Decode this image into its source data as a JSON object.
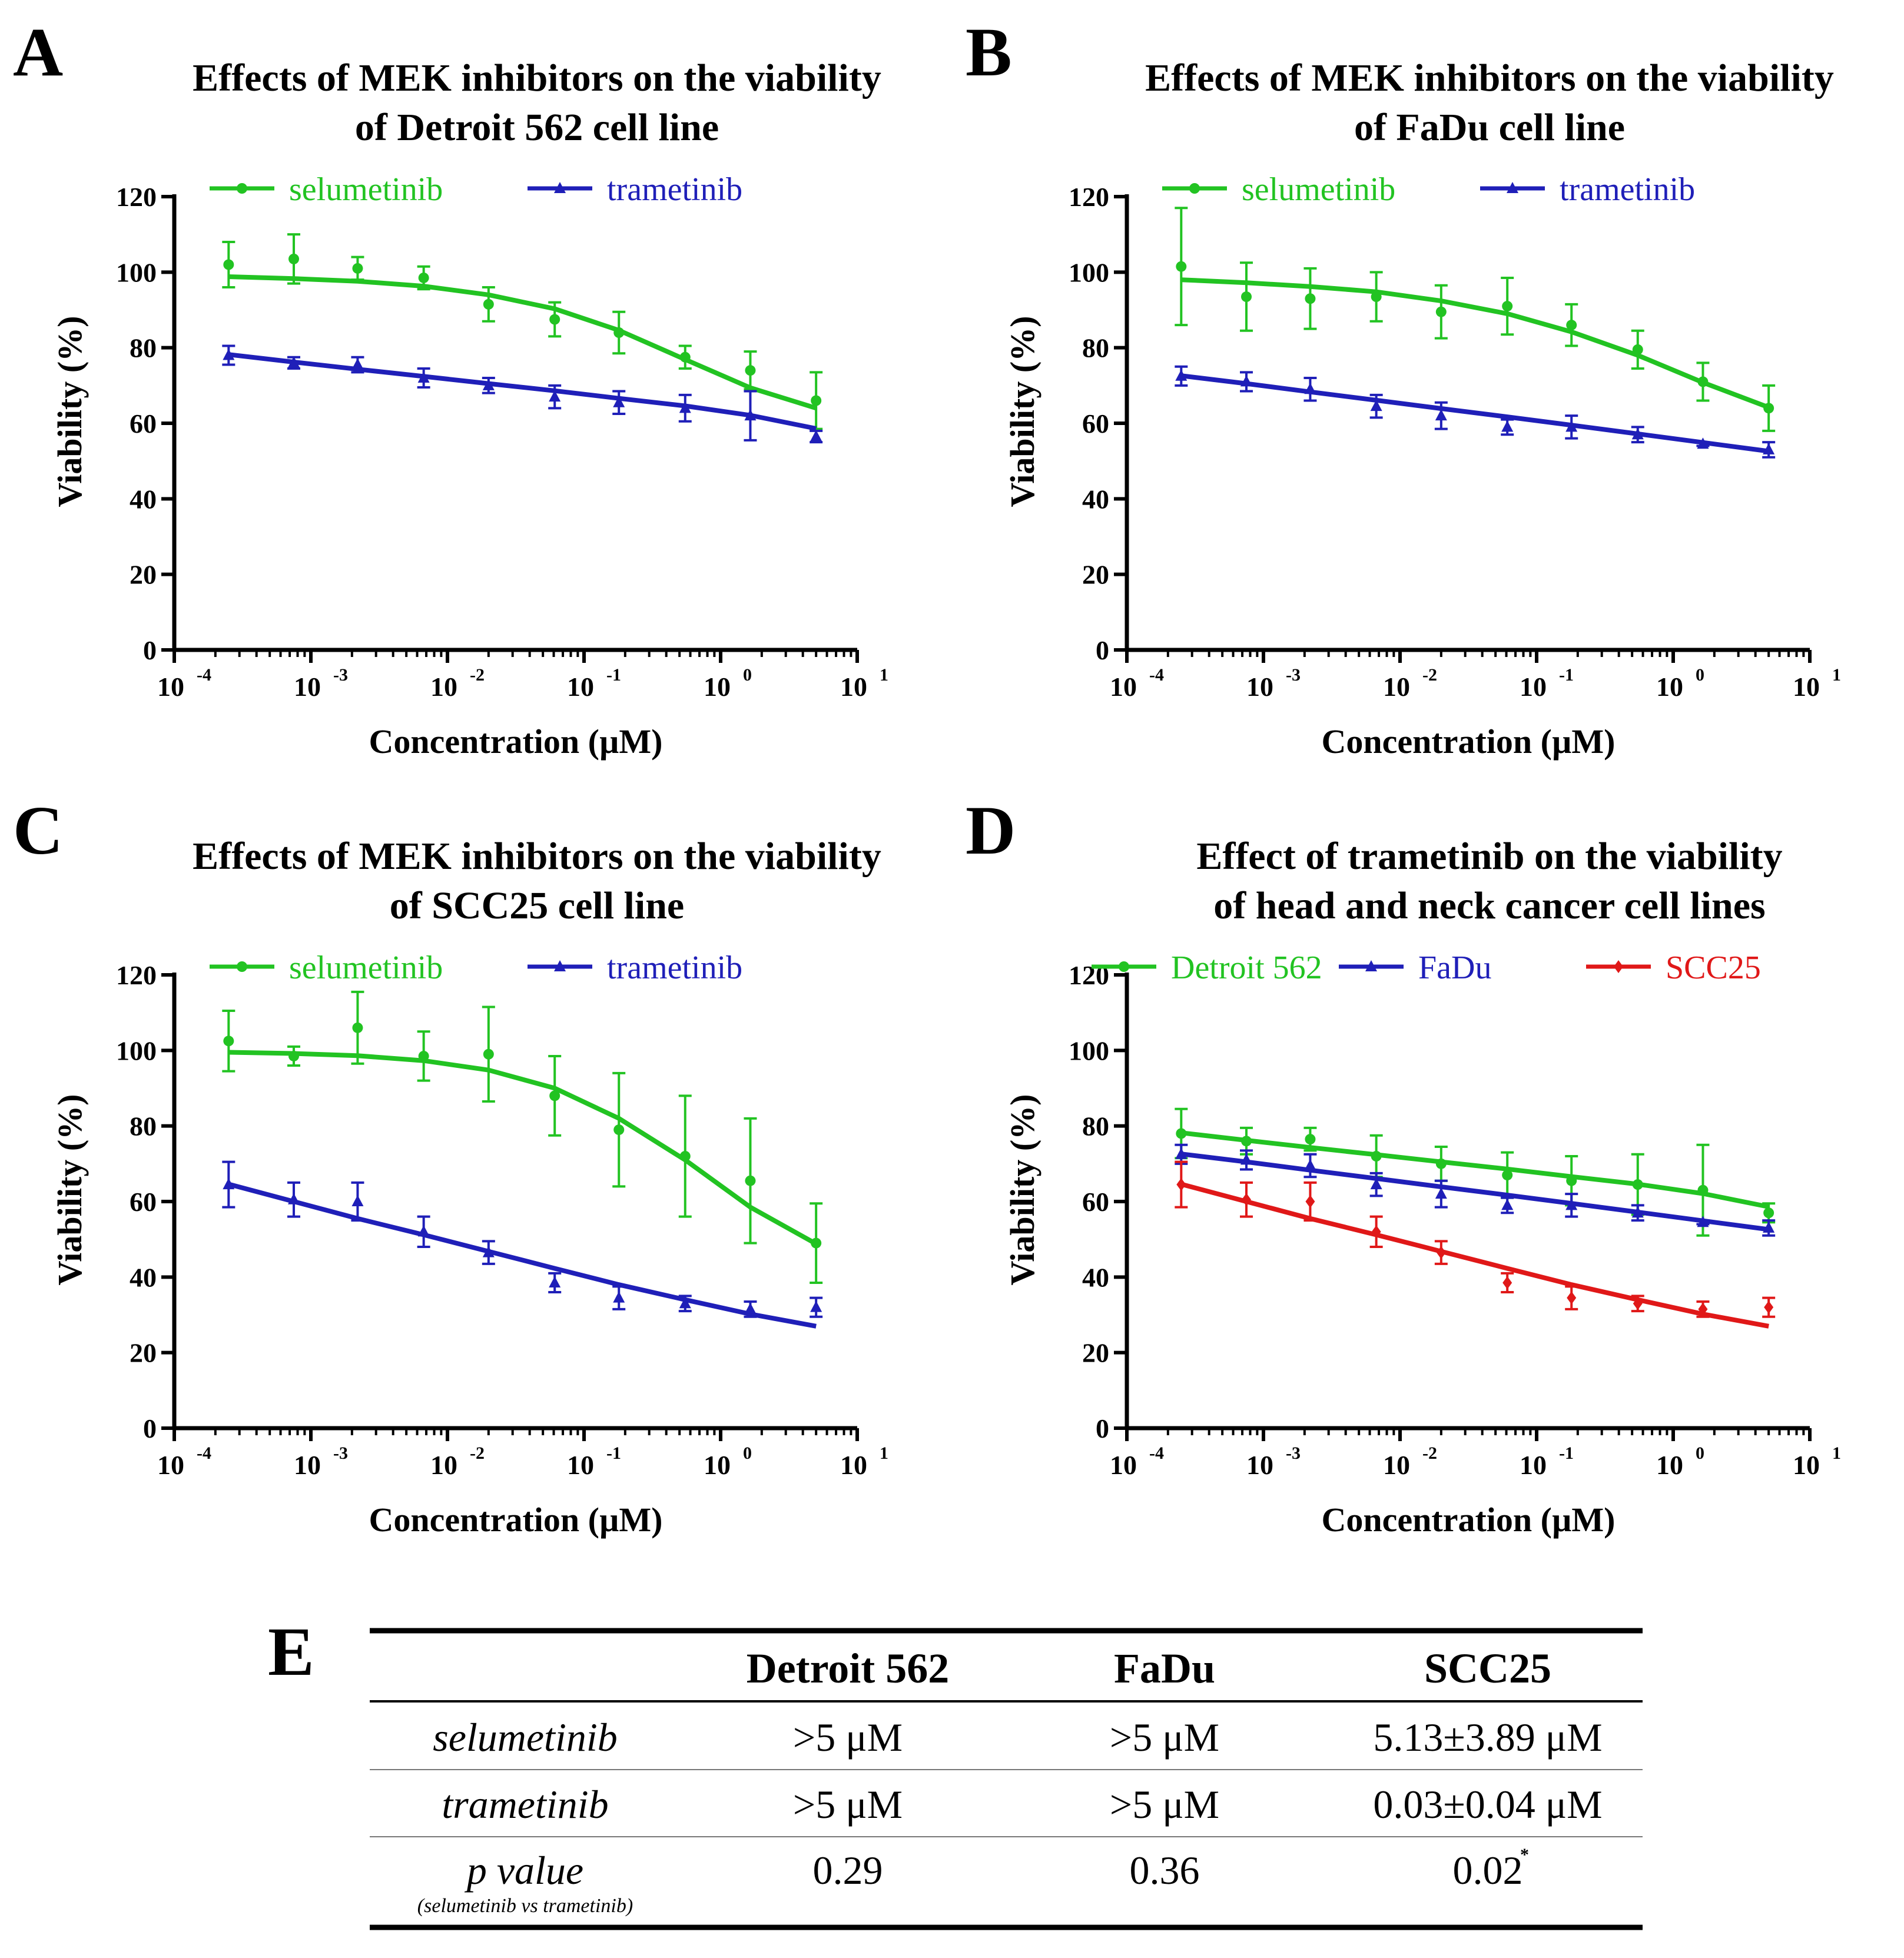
{
  "colors": {
    "green": "#22c322",
    "blue": "#1f1fb8",
    "red": "#e01818",
    "axis": "#000000"
  },
  "chart_data": [
    {
      "panel": "A",
      "type": "line",
      "title": [
        "Effects of MEK inhibitors on the viability",
        "of Detroit 562 cell line"
      ],
      "xlabel": "Concentration  (µM)",
      "ylabel": "Viability (%)",
      "xscale": "log",
      "xlim_exp": [
        -4,
        1
      ],
      "ylim": [
        0,
        120
      ],
      "x_ticks": [
        -4,
        -3,
        -2,
        -1,
        0,
        1
      ],
      "y_ticks": [
        "0",
        "20",
        "40",
        "60",
        "80",
        "100",
        "120"
      ],
      "x": [
        0.00025,
        0.00075,
        0.0022,
        0.0067,
        0.02,
        0.061,
        0.18,
        0.55,
        1.65,
        5
      ],
      "series": [
        {
          "name": "selumetinib",
          "color": "green",
          "marker": "circle",
          "values": [
            102,
            103.5,
            101,
            98.5,
            91.5,
            87.5,
            84,
            77.5,
            74,
            66
          ],
          "err": [
            6,
            6.5,
            3,
            3,
            4.5,
            4.5,
            5.5,
            3,
            5,
            7.5
          ],
          "fit": [
            98.8,
            98.3,
            97.6,
            96.3,
            94.0,
            90.3,
            84.6,
            76.9,
            69.4,
            64.0
          ]
        },
        {
          "name": "trametinib",
          "color": "blue",
          "marker": "triangle",
          "values": [
            78,
            76,
            75.5,
            72,
            70,
            67,
            65.5,
            64,
            62,
            56.5
          ],
          "err": [
            2.5,
            1.5,
            2,
            2.5,
            2,
            3,
            3,
            3.5,
            6.5,
            1.5
          ],
          "fit": [
            78.2,
            76.2,
            74.3,
            72.4,
            70.5,
            68.6,
            66.6,
            64.6,
            62.1,
            58.6
          ]
        }
      ],
      "legend_position": "top-center"
    },
    {
      "panel": "B",
      "type": "line",
      "title": [
        "Effects of MEK inhibitors on the viability",
        "of FaDu cell line"
      ],
      "xlabel": "Concentration  (µM)",
      "ylabel": "Viability (%)",
      "xscale": "log",
      "xlim_exp": [
        -4,
        1
      ],
      "ylim": [
        0,
        120
      ],
      "x_ticks": [
        -4,
        -3,
        -2,
        -1,
        0,
        1
      ],
      "y_ticks": [
        "0",
        "20",
        "40",
        "60",
        "80",
        "100",
        "120"
      ],
      "x": [
        0.00025,
        0.00075,
        0.0022,
        0.0067,
        0.02,
        0.061,
        0.18,
        0.55,
        1.65,
        5
      ],
      "series": [
        {
          "name": "selumetinib",
          "color": "green",
          "marker": "circle",
          "values": [
            101.5,
            93.5,
            93,
            93.5,
            89.5,
            91,
            86,
            79.5,
            71,
            64
          ],
          "err": [
            15.5,
            9,
            8,
            6.5,
            7,
            7.5,
            5.5,
            5,
            5,
            6
          ],
          "fit": [
            98.0,
            97.2,
            96.2,
            94.8,
            92.4,
            89.0,
            84.2,
            78.0,
            70.8,
            64.2
          ]
        },
        {
          "name": "trametinib",
          "color": "blue",
          "marker": "triangle",
          "values": [
            72.5,
            71,
            69,
            64.5,
            62,
            59,
            59,
            57,
            54.5,
            53
          ],
          "err": [
            2.5,
            2.5,
            3,
            3,
            3.5,
            2,
            3,
            2,
            0.5,
            2
          ],
          "fit": [
            72.6,
            70.5,
            68.3,
            66.1,
            63.9,
            61.7,
            59.5,
            57.2,
            54.9,
            52.6
          ]
        }
      ],
      "legend_position": "top-center"
    },
    {
      "panel": "C",
      "type": "line",
      "title": [
        "Effects of MEK inhibitors on the viability",
        "of SCC25 cell line"
      ],
      "xlabel": "Concentration  (µM)",
      "ylabel": "Viability (%)",
      "xscale": "log",
      "xlim_exp": [
        -4,
        1
      ],
      "ylim": [
        0,
        120
      ],
      "x_ticks": [
        -4,
        -3,
        -2,
        -1,
        0,
        1
      ],
      "y_ticks": [
        "0",
        "20",
        "40",
        "60",
        "80",
        "100",
        "120"
      ],
      "x": [
        0.00025,
        0.00075,
        0.0022,
        0.0067,
        0.02,
        0.061,
        0.18,
        0.55,
        1.65,
        5
      ],
      "series": [
        {
          "name": "selumetinib",
          "color": "green",
          "marker": "circle",
          "values": [
            102.5,
            98.5,
            106,
            98.5,
            99,
            88,
            79,
            72,
            65.5,
            49
          ],
          "err": [
            8,
            2.5,
            9.5,
            6.5,
            12.5,
            10.5,
            15,
            16,
            16.5,
            10.5
          ],
          "fit": [
            99.5,
            99.2,
            98.6,
            97.3,
            94.8,
            90.0,
            82.0,
            71.0,
            58.5,
            48.8
          ]
        },
        {
          "name": "trametinib",
          "color": "blue",
          "marker": "triangle",
          "values": [
            64.5,
            60.5,
            60,
            52,
            46.5,
            38.5,
            34.5,
            33,
            31.5,
            32
          ],
          "err": [
            6,
            4.5,
            5,
            4,
            3,
            2.5,
            3,
            2,
            2,
            2.5
          ],
          "fit": [
            64.6,
            60.0,
            55.5,
            51.2,
            46.8,
            42.3,
            38.0,
            34.0,
            30.2,
            27.0
          ]
        }
      ],
      "legend_position": "top-center"
    },
    {
      "panel": "D",
      "type": "line",
      "title": [
        "Effect of trametinib on the viability",
        "of head and neck cancer cell lines"
      ],
      "xlabel": "Concentration  (µM)",
      "ylabel": "Viability (%)",
      "xscale": "log",
      "xlim_exp": [
        -4,
        1
      ],
      "ylim": [
        0,
        120
      ],
      "x_ticks": [
        -4,
        -3,
        -2,
        -1,
        0,
        1
      ],
      "y_ticks": [
        "0",
        "20",
        "40",
        "60",
        "80",
        "100",
        "120"
      ],
      "x": [
        0.00025,
        0.00075,
        0.0022,
        0.0067,
        0.02,
        0.061,
        0.18,
        0.55,
        1.65,
        5
      ],
      "series": [
        {
          "name": "Detroit 562",
          "color": "green",
          "marker": "circle",
          "values": [
            78,
            76,
            76.5,
            72,
            70,
            67,
            65.5,
            64.5,
            63,
            57
          ],
          "err": [
            6.5,
            3.5,
            3,
            5.5,
            4.5,
            6,
            6.5,
            8,
            12,
            2.5
          ],
          "fit": [
            78.2,
            76.2,
            74.3,
            72.4,
            70.5,
            68.6,
            66.6,
            64.6,
            62.1,
            58.6
          ]
        },
        {
          "name": "FaDu",
          "color": "blue",
          "marker": "triangle",
          "values": [
            72.5,
            71,
            69.5,
            64.5,
            62,
            59,
            59,
            57,
            54.5,
            53
          ],
          "err": [
            2.5,
            2.5,
            3,
            3,
            3.5,
            2,
            3,
            2,
            0.5,
            2
          ],
          "fit": [
            72.6,
            70.5,
            68.3,
            66.1,
            63.9,
            61.7,
            59.5,
            57.2,
            54.9,
            52.6
          ]
        },
        {
          "name": "SCC25",
          "color": "red",
          "marker": "diamond",
          "values": [
            64.5,
            60.5,
            60,
            52,
            46.5,
            38.5,
            34.5,
            33,
            31.5,
            32
          ],
          "err": [
            6,
            4.5,
            5,
            4,
            3,
            2.5,
            3,
            2,
            2,
            2.5
          ],
          "fit": [
            64.6,
            60.0,
            55.5,
            51.2,
            46.8,
            42.3,
            38.0,
            34.0,
            30.2,
            27.0
          ]
        }
      ],
      "legend_position": "top-center"
    }
  ],
  "table": {
    "panel": "E",
    "columns": [
      "",
      "Detroit 562",
      "FaDu",
      "SCC25"
    ],
    "rows": [
      {
        "label": "selumetinib",
        "cells": [
          ">5 μM",
          ">5 μM",
          "5.13±3.89 μM"
        ]
      },
      {
        "label": "trametinib",
        "cells": [
          ">5 μM",
          ">5 μM",
          "0.03±0.04 μM"
        ]
      },
      {
        "label": "p value",
        "note": "(selumetinib vs trametinib)",
        "cells": [
          "0.29",
          "0.36",
          "0.02"
        ],
        "star": "*"
      }
    ]
  }
}
